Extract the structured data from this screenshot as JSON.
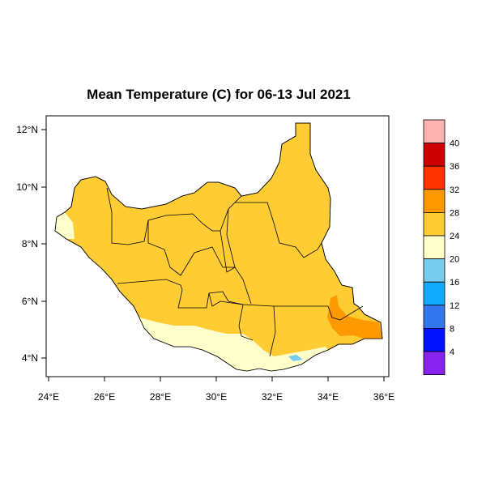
{
  "title": "Mean Temperature (C) for 06-13 Jul 2021",
  "map": {
    "region": "South Sudan",
    "x_ticks": [
      "24°E",
      "26°E",
      "28°E",
      "30°E",
      "32°E",
      "34°E",
      "36°E"
    ],
    "y_ticks": [
      "12°N",
      "10°N",
      "8°N",
      "6°N",
      "4°N"
    ]
  },
  "legend": {
    "labels": [
      "40",
      "36",
      "32",
      "28",
      "24",
      "20",
      "16",
      "12",
      "8",
      "4"
    ],
    "colors": [
      "#ffb3b3",
      "#cc0000",
      "#ff3300",
      "#ff9900",
      "#ffcc33",
      "#ffffcc",
      "#77ccee",
      "#11aaff",
      "#3377ee",
      "#0011ff",
      "#8822ee"
    ]
  },
  "colors": {
    "main_fill": "#ffcc33",
    "cool_fill": "#ffffcc",
    "warm_fill": "#ff9900",
    "cold_spot": "#77ccee"
  }
}
